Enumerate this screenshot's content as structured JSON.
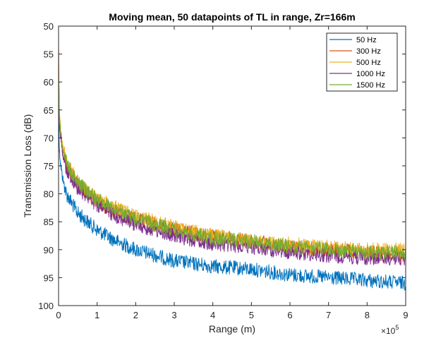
{
  "chart_data": {
    "type": "line",
    "title": "Moving mean, 50 datapoints of TL in range, Zr=166m",
    "xlabel": "Range (m)",
    "ylabel": "Transmission Loss (dB)",
    "x_multiplier_label": "×10",
    "x_multiplier_exponent": "5",
    "xlim": [
      0,
      900000
    ],
    "ylim": [
      50,
      100
    ],
    "y_reversed": true,
    "xticks": [
      0,
      100000,
      200000,
      300000,
      400000,
      500000,
      600000,
      700000,
      800000,
      900000
    ],
    "xtick_labels": [
      "0",
      "1",
      "2",
      "3",
      "4",
      "5",
      "6",
      "7",
      "8",
      "9"
    ],
    "yticks": [
      50,
      55,
      60,
      65,
      70,
      75,
      80,
      85,
      90,
      95,
      100
    ],
    "ytick_labels": [
      "50",
      "55",
      "60",
      "65",
      "70",
      "75",
      "80",
      "85",
      "90",
      "95",
      "100"
    ],
    "grid": false,
    "legend_position": "top-right",
    "x": [
      0,
      2000,
      5000,
      10000,
      20000,
      50000,
      100000,
      150000,
      200000,
      300000,
      400000,
      500000,
      600000,
      700000,
      800000,
      900000
    ],
    "series": [
      {
        "name": "50 Hz",
        "color": "#0072BD",
        "values": [
          64,
          72,
          74.5,
          77,
          80,
          83.5,
          86.5,
          88.5,
          90,
          92,
          93,
          93.5,
          94.5,
          95,
          95.5,
          96
        ]
      },
      {
        "name": "300 Hz",
        "color": "#D95319",
        "values": [
          53,
          66,
          69,
          72,
          75,
          78.5,
          81.5,
          83.5,
          84.5,
          86.5,
          87.5,
          88.5,
          89.5,
          90,
          90.5,
          91
        ]
      },
      {
        "name": "500 Hz",
        "color": "#EDB120",
        "values": [
          58,
          65,
          68,
          71,
          74,
          78,
          81,
          82.5,
          84,
          86,
          87.5,
          88.5,
          89,
          89.5,
          90,
          90
        ]
      },
      {
        "name": "1000 Hz",
        "color": "#7E2F8E",
        "values": [
          60,
          67,
          69.5,
          72.5,
          75.5,
          79,
          82,
          84,
          85.5,
          87.5,
          89,
          89.5,
          90.5,
          91,
          91.5,
          91.5
        ]
      },
      {
        "name": "1500 Hz",
        "color": "#77AC30",
        "values": [
          57,
          66,
          68.5,
          71.5,
          74.5,
          78,
          81,
          83,
          84.5,
          86.5,
          88,
          88.5,
          89.5,
          90,
          90.5,
          90.5
        ]
      }
    ]
  }
}
